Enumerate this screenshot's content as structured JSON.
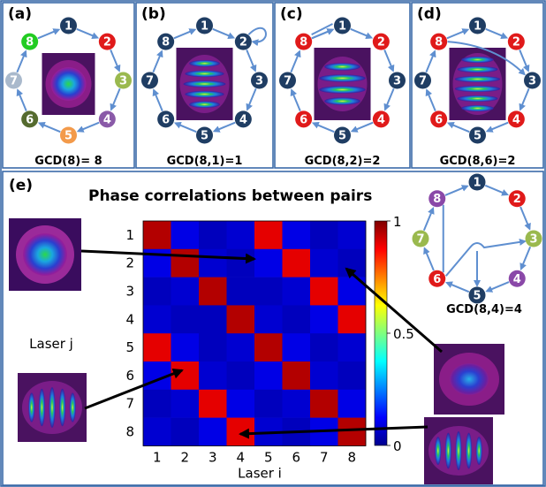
{
  "panels": [
    {
      "tag": "(a)",
      "caption": "GCD(8)= 8"
    },
    {
      "tag": "(b)",
      "caption": "GCD(8,1)=1"
    },
    {
      "tag": "(c)",
      "caption": "GCD(8,2)=2"
    },
    {
      "tag": "(d)",
      "caption": "GCD(8,6)=2"
    }
  ],
  "panel_e": {
    "tag": "(e)",
    "title": "Phase correlations between pairs",
    "ring_caption": "GCD(8,4)=4",
    "node_labels": [
      "1",
      "2",
      "3",
      "4",
      "5",
      "6",
      "7",
      "8"
    ]
  },
  "colors": {
    "frame": "#3b6aa8",
    "arrow": "#5f8fd0",
    "node_dark": "#1f3d63",
    "node_red": "#e01a1a",
    "node_purple": "#8a48a8",
    "node_green": "#9ab94e",
    "node_a": [
      "#1f3d63",
      "#e01a1a",
      "#9ab94e",
      "#8a5aa8",
      "#f39a4a",
      "#556b2f",
      "#a9b9cc",
      "#22cc22"
    ]
  },
  "chart_data": {
    "type": "heatmap",
    "title": "Phase correlations between pairs",
    "xlabel": "Laser i",
    "ylabel": "Laser j",
    "x": [
      "1",
      "2",
      "3",
      "4",
      "5",
      "6",
      "7",
      "8"
    ],
    "y": [
      "1",
      "2",
      "3",
      "4",
      "5",
      "6",
      "7",
      "8"
    ],
    "colorbar": {
      "min": 0,
      "max": 1,
      "ticks": [
        "0",
        "0.5",
        "1"
      ]
    },
    "values": [
      [
        0.95,
        0.1,
        0.06,
        0.08,
        0.9,
        0.1,
        0.06,
        0.08
      ],
      [
        0.1,
        0.95,
        0.08,
        0.06,
        0.1,
        0.9,
        0.08,
        0.06
      ],
      [
        0.06,
        0.08,
        0.95,
        0.06,
        0.06,
        0.08,
        0.9,
        0.1
      ],
      [
        0.08,
        0.06,
        0.06,
        0.95,
        0.08,
        0.06,
        0.1,
        0.9
      ],
      [
        0.9,
        0.1,
        0.06,
        0.08,
        0.95,
        0.1,
        0.06,
        0.08
      ],
      [
        0.1,
        0.9,
        0.08,
        0.06,
        0.1,
        0.95,
        0.08,
        0.06
      ],
      [
        0.06,
        0.08,
        0.9,
        0.1,
        0.06,
        0.08,
        0.95,
        0.1
      ],
      [
        0.08,
        0.06,
        0.1,
        0.9,
        0.08,
        0.06,
        0.1,
        0.95
      ]
    ]
  }
}
